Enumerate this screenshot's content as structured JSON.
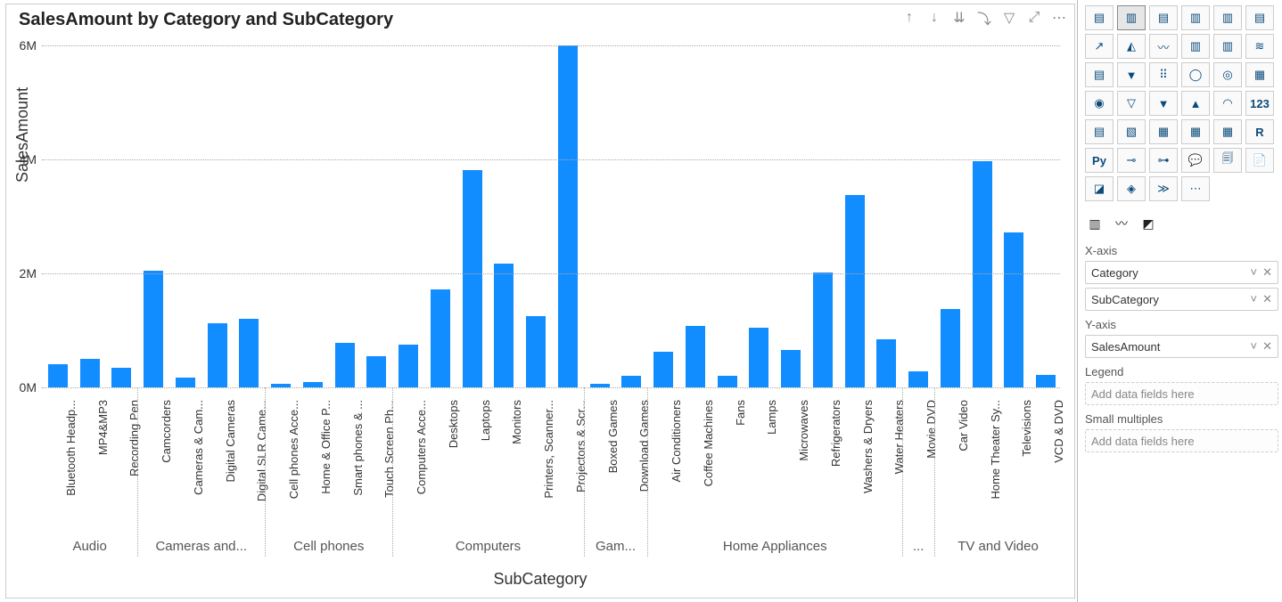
{
  "chart": {
    "type": "bar",
    "title": "SalesAmount by Category and SubCategory",
    "y_axis_title": "SalesAmount",
    "x_axis_title": "SubCategory",
    "bar_color": "#118dff",
    "grid_color": "#aaaaaa",
    "background_color": "#ffffff",
    "ylim": [
      0,
      6000000
    ],
    "ytick_step": 2000000,
    "ytick_labels": [
      "0M",
      "2M",
      "4M",
      "6M"
    ],
    "categories": [
      {
        "label": "Audio",
        "items": [
          {
            "label": "Bluetooth Headp...",
            "value": 400000
          },
          {
            "label": "MP4&MP3",
            "value": 500000
          },
          {
            "label": "Recording Pen",
            "value": 340000
          }
        ]
      },
      {
        "label": "Cameras and...",
        "items": [
          {
            "label": "Camcorders",
            "value": 2050000
          },
          {
            "label": "Cameras & Cam...",
            "value": 170000
          },
          {
            "label": "Digital Cameras",
            "value": 1120000
          },
          {
            "label": "Digital SLR Came...",
            "value": 1200000
          }
        ]
      },
      {
        "label": "Cell phones",
        "items": [
          {
            "label": "Cell phones Acce...",
            "value": 60000
          },
          {
            "label": "Home & Office P...",
            "value": 100000
          },
          {
            "label": "Smart phones & ...",
            "value": 780000
          },
          {
            "label": "Touch Screen Ph...",
            "value": 550000
          }
        ]
      },
      {
        "label": "Computers",
        "items": [
          {
            "label": "Computers Acce...",
            "value": 750000
          },
          {
            "label": "Desktops",
            "value": 1720000
          },
          {
            "label": "Laptops",
            "value": 3820000
          },
          {
            "label": "Monitors",
            "value": 2170000
          },
          {
            "label": "Printers, Scanner...",
            "value": 1250000
          },
          {
            "label": "Projectors & Scr...",
            "value": 6000000
          }
        ]
      },
      {
        "label": "Gam...",
        "items": [
          {
            "label": "Boxed Games",
            "value": 70000
          },
          {
            "label": "Download Games",
            "value": 200000
          }
        ]
      },
      {
        "label": "Home Appliances",
        "items": [
          {
            "label": "Air Conditioners",
            "value": 620000
          },
          {
            "label": "Coffee Machines",
            "value": 1080000
          },
          {
            "label": "Fans",
            "value": 200000
          },
          {
            "label": "Lamps",
            "value": 1050000
          },
          {
            "label": "Microwaves",
            "value": 660000
          },
          {
            "label": "Refrigerators",
            "value": 2010000
          },
          {
            "label": "Washers & Dryers",
            "value": 3370000
          },
          {
            "label": "Water Heaters",
            "value": 840000
          }
        ]
      },
      {
        "label": "...",
        "items": [
          {
            "label": "Movie DVD",
            "value": 280000
          }
        ]
      },
      {
        "label": "TV and Video",
        "items": [
          {
            "label": "Car Video",
            "value": 1380000
          },
          {
            "label": "Home Theater Sy...",
            "value": 3970000
          },
          {
            "label": "Televisions",
            "value": 2720000
          },
          {
            "label": "VCD & DVD",
            "value": 220000
          }
        ]
      }
    ],
    "actions": [
      {
        "name": "drill-up-icon",
        "glyph": "↑"
      },
      {
        "name": "drill-down-icon",
        "glyph": "↓"
      },
      {
        "name": "expand-next-icon",
        "glyph": "⇊"
      },
      {
        "name": "goto-next-icon",
        "glyph": "⤵"
      },
      {
        "name": "filter-icon",
        "glyph": "▽"
      },
      {
        "name": "focus-mode-icon",
        "glyph": "⤢"
      },
      {
        "name": "more-options-icon",
        "glyph": "⋯"
      }
    ]
  },
  "side": {
    "viz_icons": [
      {
        "name": "stacked-bar-icon",
        "glyph": "▤"
      },
      {
        "name": "clustered-column-icon",
        "glyph": "▥",
        "selected": true
      },
      {
        "name": "stacked-bar-horizontal-icon",
        "glyph": "▤"
      },
      {
        "name": "clustered-bar-icon",
        "glyph": "▥"
      },
      {
        "name": "100pct-stacked-column-icon",
        "glyph": "▥"
      },
      {
        "name": "100pct-stacked-bar-icon",
        "glyph": "▤"
      },
      {
        "name": "line-chart-icon",
        "glyph": "↗"
      },
      {
        "name": "area-chart-icon",
        "glyph": "◭"
      },
      {
        "name": "stacked-area-icon",
        "glyph": "〰"
      },
      {
        "name": "line-stacked-column-icon",
        "glyph": "▥"
      },
      {
        "name": "ribbon-chart-icon",
        "glyph": "▥"
      },
      {
        "name": "waterfall-chart-icon",
        "glyph": "≋"
      },
      {
        "name": "funnel-chart-icon",
        "glyph": "▤"
      },
      {
        "name": "scatter-chart-icon",
        "glyph": "▼"
      },
      {
        "name": "pie-chart-icon",
        "glyph": "⠿"
      },
      {
        "name": "donut-chart-icon",
        "glyph": "◯"
      },
      {
        "name": "treemap-icon",
        "glyph": "◎"
      },
      {
        "name": "map-icon",
        "glyph": "▦"
      },
      {
        "name": "filled-map-icon",
        "glyph": "◉"
      },
      {
        "name": "shape-map-icon",
        "glyph": "▽"
      },
      {
        "name": "gauge-icon",
        "glyph": "▼"
      },
      {
        "name": "card-icon",
        "glyph": "▲"
      },
      {
        "name": "multi-row-card-icon",
        "glyph": "◠"
      },
      {
        "name": "kpi-icon",
        "glyph": "123",
        "bold": true
      },
      {
        "name": "slicer-icon",
        "glyph": "▤"
      },
      {
        "name": "table-icon",
        "glyph": "▧"
      },
      {
        "name": "matrix-icon",
        "glyph": "▦"
      },
      {
        "name": "decomp-tree-icon",
        "glyph": "▦"
      },
      {
        "name": "qna-icon",
        "glyph": "▦"
      },
      {
        "name": "r-visual-icon",
        "glyph": "R",
        "bold": true
      },
      {
        "name": "python-visual-icon",
        "glyph": "Py",
        "bold": true
      },
      {
        "name": "key-influencers-icon",
        "glyph": "⊸"
      },
      {
        "name": "smart-narrative-icon",
        "glyph": "⊶"
      },
      {
        "name": "paginated-report-icon",
        "glyph": "💬"
      },
      {
        "name": "data-story-icon",
        "glyph": "🗐"
      },
      {
        "name": "get-more-visuals-icon",
        "glyph": "📄"
      },
      {
        "name": "power-apps-icon",
        "glyph": "◪"
      },
      {
        "name": "power-automate-icon",
        "glyph": "◈"
      },
      {
        "name": "blank-visual-icon",
        "glyph": "≫"
      },
      {
        "name": "more-visuals-icon",
        "glyph": "⋯"
      }
    ],
    "extra_icons": [
      {
        "name": "drill-through-icon",
        "glyph": "▥"
      },
      {
        "name": "format-icon",
        "glyph": "〰"
      },
      {
        "name": "analytics-icon",
        "glyph": "◩"
      }
    ],
    "sections": [
      {
        "title": "X-axis",
        "wells": [
          {
            "label": "Category",
            "placeholder": false
          },
          {
            "label": "SubCategory",
            "placeholder": false
          }
        ]
      },
      {
        "title": "Y-axis",
        "wells": [
          {
            "label": "SalesAmount",
            "placeholder": false
          }
        ]
      },
      {
        "title": "Legend",
        "wells": [
          {
            "label": "Add data fields here",
            "placeholder": true
          }
        ]
      },
      {
        "title": "Small multiples",
        "wells": [
          {
            "label": "Add data fields here",
            "placeholder": true
          }
        ]
      }
    ]
  }
}
